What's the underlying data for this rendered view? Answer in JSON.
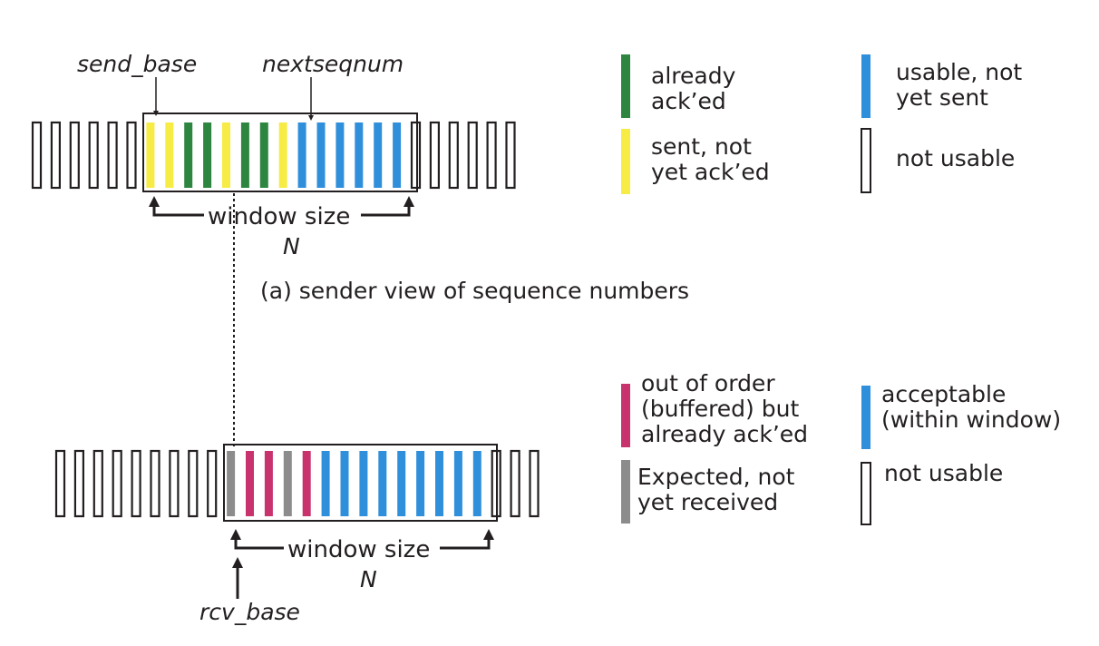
{
  "colors": {
    "acked": "#2e8540",
    "sent": "#f7ec45",
    "usable": "#2f8fdb",
    "buffered": "#c8336e",
    "expected": "#8c8c8c",
    "outline": "#231f20"
  },
  "sender": {
    "send_base_label": "send_base",
    "nextseqnum_label": "nextseqnum",
    "window_label": "window size",
    "n_label": "N",
    "caption": "(a) sender view of sequence numbers",
    "left_unusable_count": 6,
    "window_cells": [
      "sent",
      "sent",
      "acked",
      "acked",
      "sent",
      "acked",
      "acked",
      "sent",
      "usable",
      "usable",
      "usable",
      "usable",
      "usable",
      "usable"
    ],
    "right_unusable_count": 6
  },
  "receiver": {
    "rcv_base_label": "rcv_base",
    "window_label": "window size",
    "n_label": "N",
    "left_unusable_count": 9,
    "window_cells": [
      "expected",
      "buffered",
      "buffered",
      "expected",
      "buffered",
      "usable",
      "usable",
      "usable",
      "usable",
      "usable",
      "usable",
      "usable",
      "usable",
      "usable"
    ],
    "right_unusable_count": 3
  },
  "legend_sender": {
    "already_acked": [
      "already",
      "ack’ed"
    ],
    "usable_not_sent": [
      "usable, not",
      "yet sent"
    ],
    "sent_not_acked": [
      "sent, not",
      "yet ack’ed"
    ],
    "not_usable": [
      "not usable"
    ]
  },
  "legend_receiver": {
    "out_of_order": [
      "out of order",
      "(buffered) but",
      "already ack’ed"
    ],
    "acceptable": [
      "acceptable",
      "(within window)"
    ],
    "expected": [
      "Expected,  not",
      "yet received"
    ],
    "not_usable": [
      "not usable"
    ]
  }
}
